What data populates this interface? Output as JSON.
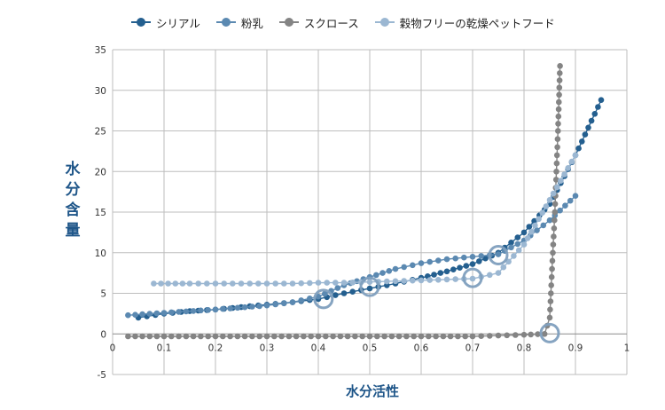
{
  "chart_data": {
    "type": "scatter",
    "xlabel": "水分活性",
    "ylabel": "水分含量",
    "xlim": [
      0,
      1
    ],
    "ylim": [
      -5,
      35
    ],
    "x_ticks": [
      "0",
      "0.1",
      "0.2",
      "0.3",
      "0.4",
      "0.5",
      "0.6",
      "0.7",
      "0.8",
      "0.9",
      "1"
    ],
    "y_ticks": [
      "-5",
      "0",
      "5",
      "10",
      "15",
      "20",
      "25",
      "30",
      "35"
    ],
    "grid": true,
    "legend_position": "top",
    "series": [
      {
        "name": "シリアル",
        "color": "#245f8f",
        "points": [
          [
            0.05,
            2.0
          ],
          [
            0.1,
            2.5
          ],
          [
            0.15,
            2.8
          ],
          [
            0.2,
            3.0
          ],
          [
            0.25,
            3.3
          ],
          [
            0.3,
            3.6
          ],
          [
            0.35,
            3.9
          ],
          [
            0.4,
            4.3
          ],
          [
            0.45,
            5.0
          ],
          [
            0.5,
            5.6
          ],
          [
            0.55,
            6.2
          ],
          [
            0.6,
            6.9
          ],
          [
            0.65,
            7.7
          ],
          [
            0.7,
            8.6
          ],
          [
            0.75,
            10.0
          ],
          [
            0.8,
            12.5
          ],
          [
            0.85,
            16.0
          ],
          [
            0.9,
            22.0
          ],
          [
            0.95,
            28.8
          ]
        ]
      },
      {
        "name": "粉乳",
        "color": "#5b89b1",
        "points": [
          [
            0.03,
            2.3
          ],
          [
            0.1,
            2.6
          ],
          [
            0.2,
            3.0
          ],
          [
            0.3,
            3.5
          ],
          [
            0.35,
            3.9
          ],
          [
            0.4,
            4.6
          ],
          [
            0.45,
            6.0
          ],
          [
            0.5,
            7.0
          ],
          [
            0.55,
            8.0
          ],
          [
            0.6,
            8.7
          ],
          [
            0.65,
            9.2
          ],
          [
            0.7,
            9.5
          ],
          [
            0.75,
            9.8
          ],
          [
            0.8,
            11.5
          ],
          [
            0.85,
            14.0
          ],
          [
            0.9,
            17.0
          ]
        ]
      },
      {
        "name": "スクロース",
        "color": "#848484",
        "points": [
          [
            0.03,
            -0.3
          ],
          [
            0.1,
            -0.3
          ],
          [
            0.2,
            -0.3
          ],
          [
            0.3,
            -0.3
          ],
          [
            0.4,
            -0.3
          ],
          [
            0.5,
            -0.3
          ],
          [
            0.6,
            -0.3
          ],
          [
            0.7,
            -0.3
          ],
          [
            0.75,
            -0.2
          ],
          [
            0.8,
            -0.1
          ],
          [
            0.84,
            0.0
          ],
          [
            0.85,
            2.0
          ],
          [
            0.853,
            6.0
          ],
          [
            0.856,
            10.0
          ],
          [
            0.86,
            15.0
          ],
          [
            0.863,
            20.0
          ],
          [
            0.866,
            25.0
          ],
          [
            0.87,
            33.0
          ]
        ]
      },
      {
        "name": "穀物フリーの乾燥ペットフード",
        "color": "#9bb7d2",
        "points": [
          [
            0.08,
            6.2
          ],
          [
            0.15,
            6.2
          ],
          [
            0.2,
            6.2
          ],
          [
            0.25,
            6.2
          ],
          [
            0.3,
            6.2
          ],
          [
            0.35,
            6.2
          ],
          [
            0.4,
            6.3
          ],
          [
            0.45,
            6.3
          ],
          [
            0.5,
            6.4
          ],
          [
            0.55,
            6.5
          ],
          [
            0.6,
            6.6
          ],
          [
            0.65,
            6.7
          ],
          [
            0.7,
            6.8
          ],
          [
            0.75,
            7.5
          ],
          [
            0.8,
            11.0
          ],
          [
            0.85,
            16.5
          ],
          [
            0.9,
            22.0
          ]
        ]
      }
    ],
    "highlight_points": [
      [
        0.41,
        4.3
      ],
      [
        0.5,
        5.8
      ],
      [
        0.7,
        6.9
      ],
      [
        0.75,
        9.7
      ],
      [
        0.85,
        0.1
      ]
    ],
    "highlight_color": "#7f9fbe"
  }
}
